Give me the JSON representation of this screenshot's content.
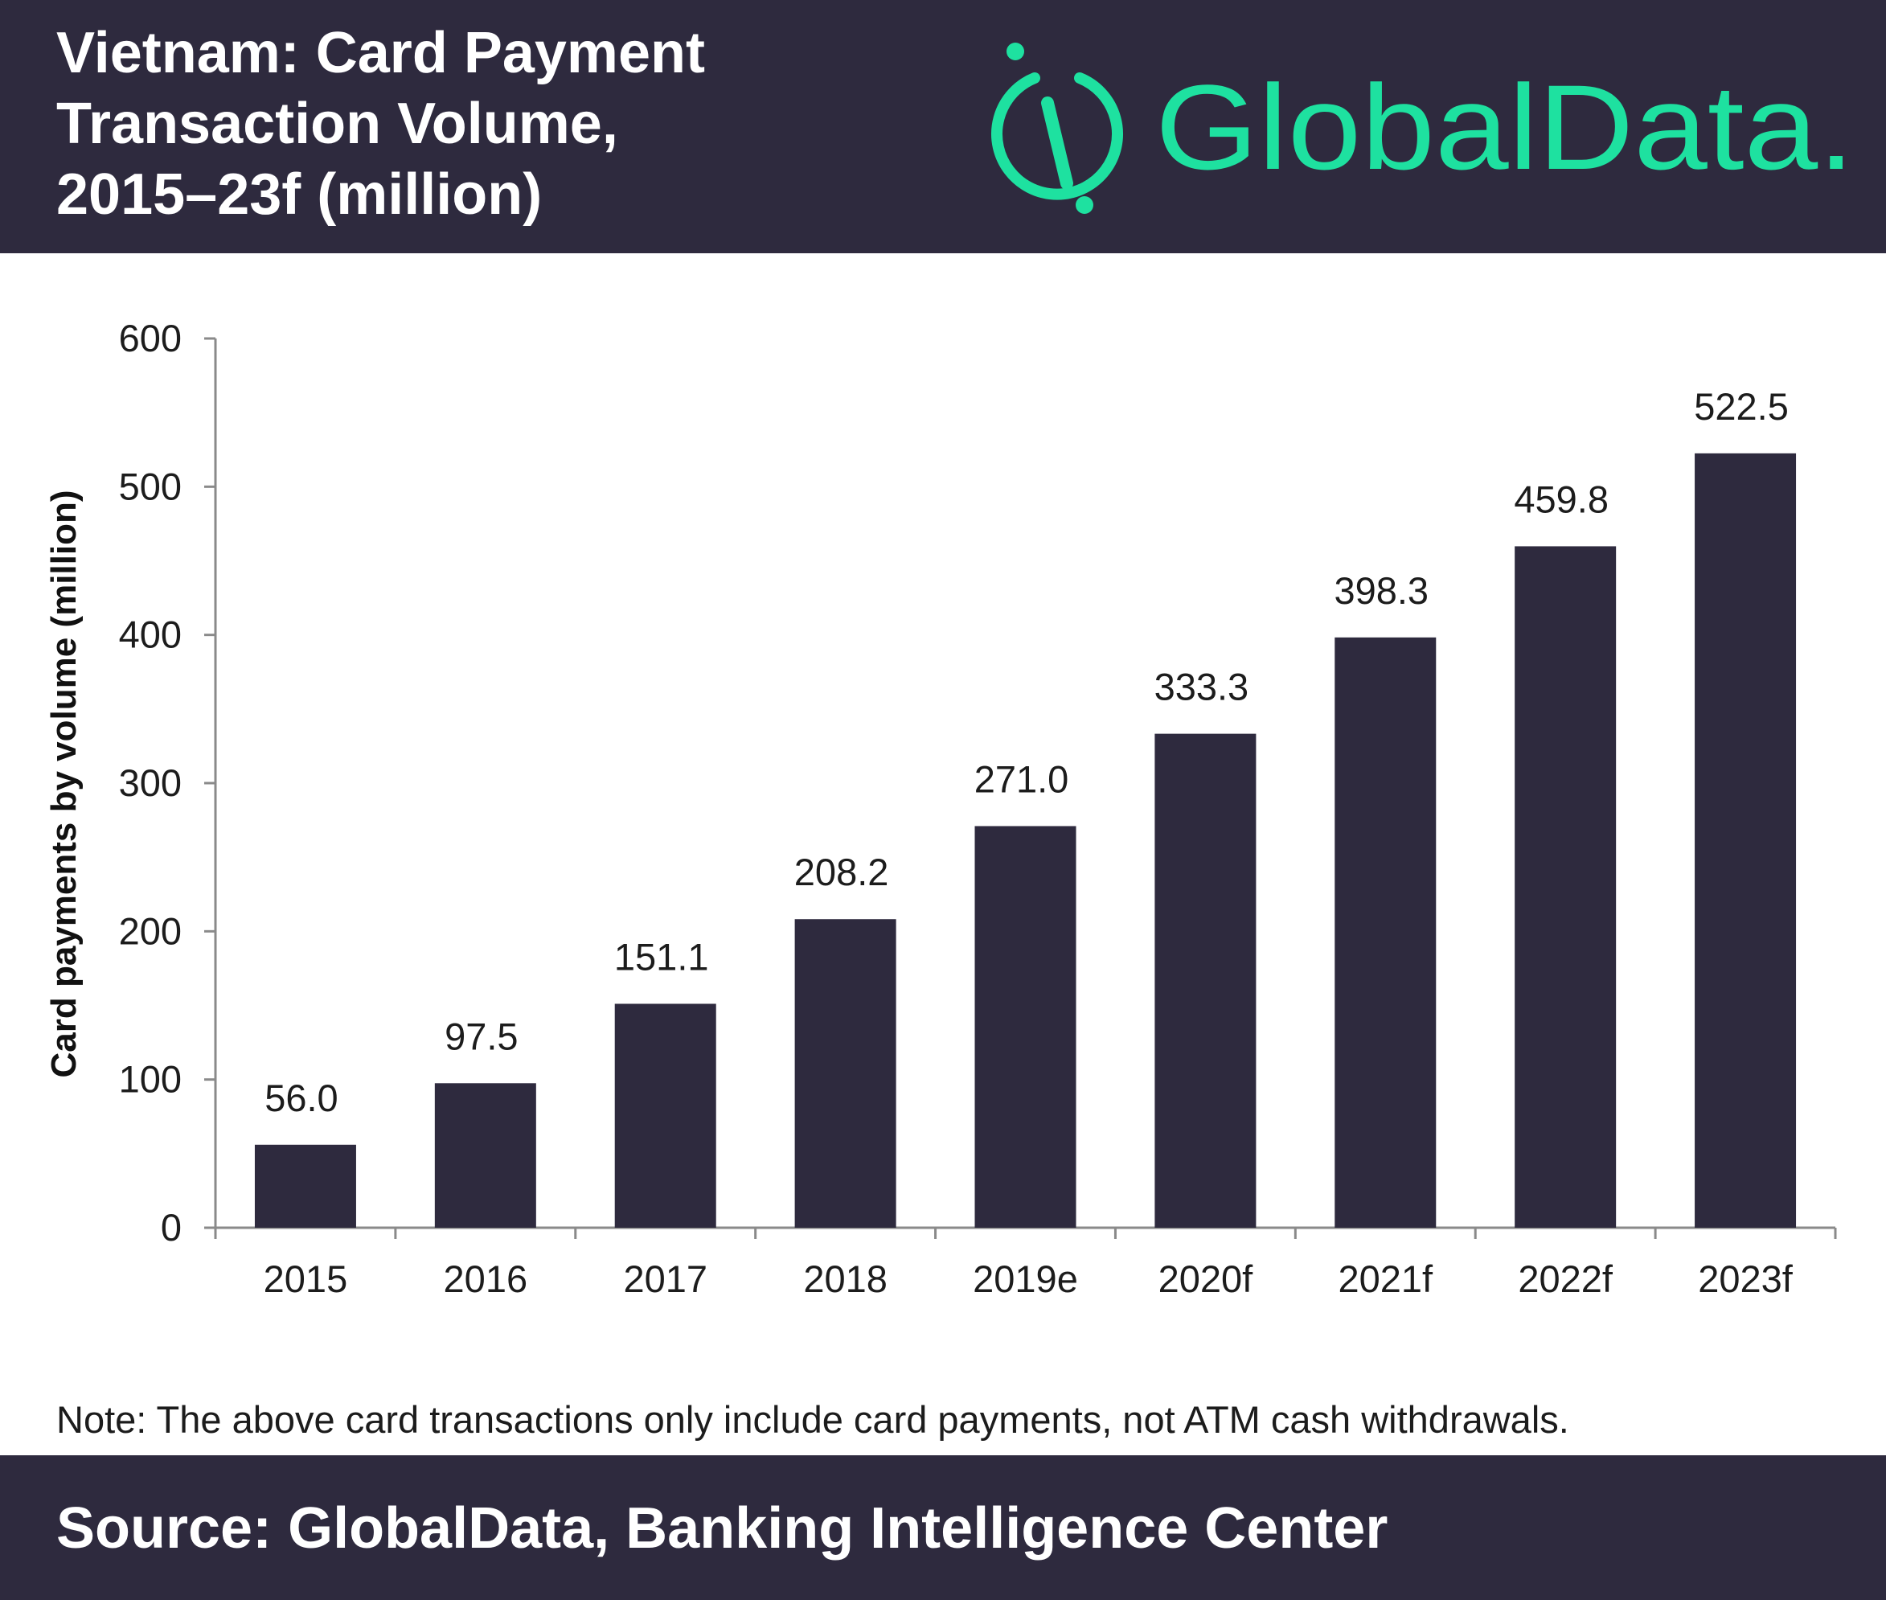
{
  "header": {
    "title_lines": [
      "Vietnam: Card Payment",
      "Transaction Volume,",
      "2015–23f (million)"
    ],
    "logo_text": "GlobalData.",
    "logo_color": "#1ee1a0",
    "background_color": "#2e2a3e"
  },
  "chart_data": {
    "type": "bar",
    "categories": [
      "2015",
      "2016",
      "2017",
      "2018",
      "2019e",
      "2020f",
      "2021f",
      "2022f",
      "2023f"
    ],
    "values": [
      56.0,
      97.5,
      151.1,
      208.2,
      271.0,
      333.3,
      398.3,
      459.8,
      522.5
    ],
    "data_labels": [
      "56.0",
      "97.5",
      "151.1",
      "208.2",
      "271.0",
      "333.3",
      "398.3",
      "459.8",
      "522.5"
    ],
    "ylabel": "Card payments by volume (million)",
    "xlabel": "",
    "ylim": [
      0,
      600
    ],
    "yticks": [
      0,
      100,
      200,
      300,
      400,
      500,
      600
    ],
    "grid": false,
    "legend": "none",
    "bar_color": "#2e2a3e"
  },
  "note": "Note: The above card transactions only include card payments, not ATM cash withdrawals.",
  "footer": {
    "source": "Source: GlobalData, Banking Intelligence Center"
  }
}
